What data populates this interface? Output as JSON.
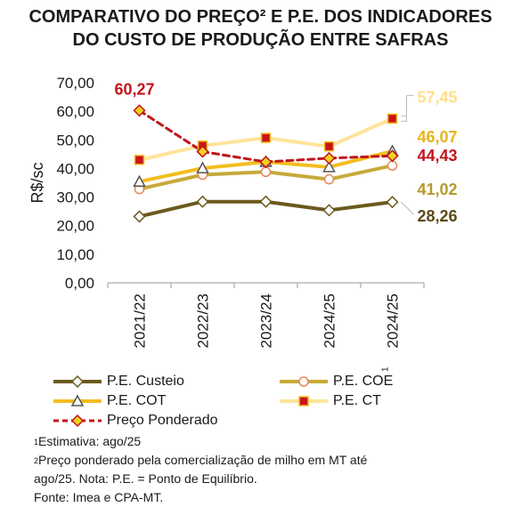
{
  "title_line1": "COMPARATIVO DO PREÇO² E P.E. DOS INDICADORES",
  "title_line2": "DO CUSTO DE PRODUÇÃO ENTRE SAFRAS",
  "chart_data": {
    "type": "line",
    "ylabel": "R$/sc",
    "ylim": [
      0,
      70
    ],
    "yticks": [
      "0,00",
      "10,00",
      "20,00",
      "30,00",
      "40,00",
      "50,00",
      "60,00",
      "70,00"
    ],
    "categories": [
      "2021/22",
      "2022/23",
      "2023/24",
      "2024/25",
      "2024/25"
    ],
    "last_category_superscript": "1",
    "series": [
      {
        "name": "P.E. Custeio",
        "values": [
          23.2,
          28.4,
          28.4,
          25.4,
          28.26
        ],
        "color": "#6B5A1E",
        "marker": "diamond",
        "marker_fill": "#ffffff"
      },
      {
        "name": "P.E. COE",
        "values": [
          32.8,
          37.8,
          38.8,
          36.2,
          41.02
        ],
        "color": "#C7A93A",
        "marker": "circle",
        "marker_fill": "#ffffff",
        "marker_stroke": "#E8875A"
      },
      {
        "name": "P.E. COT",
        "values": [
          35.4,
          40.1,
          42.3,
          40.5,
          46.07
        ],
        "color": "#F2BE1E",
        "marker": "triangle",
        "marker_fill": "#ffffff",
        "marker_stroke": "#555555"
      },
      {
        "name": "P.E. CT",
        "values": [
          43.0,
          48.0,
          50.7,
          47.7,
          57.45
        ],
        "color": "#FFE49A",
        "marker": "square",
        "marker_fill": "#C9151B",
        "marker_stroke": "#F2BE1E"
      },
      {
        "name": "Preço Ponderado",
        "values": [
          60.27,
          45.9,
          42.3,
          43.6,
          44.43
        ],
        "color": "#C0151B",
        "dashed": true,
        "marker": "diamond",
        "marker_fill": "#F2D21E",
        "marker_stroke": "#C0151B"
      }
    ],
    "annotations": [
      {
        "text": "60,27",
        "series": "Preço Ponderado",
        "color": "#C0151B"
      },
      {
        "text": "57,45",
        "series": "P.E. CT",
        "color": "#FFE08A"
      },
      {
        "text": "46,07",
        "series": "P.E. COT",
        "color": "#E6B418"
      },
      {
        "text": "44,43",
        "series": "Preço Ponderado",
        "color": "#C0151B"
      },
      {
        "text": "41,02",
        "series": "P.E. COE",
        "color": "#B59A2E"
      },
      {
        "text": "28,26",
        "series": "P.E. Custeio",
        "color": "#5A4A16"
      }
    ],
    "grid": false,
    "legend_position": "bottom"
  },
  "notes": {
    "n1_sup": "1",
    "n1": "Estimativa: ago/25",
    "n2_sup": "2",
    "n2a": "Preço ponderado pela comercialização de milho em MT até",
    "n2b": "ago/25. Nota: P.E. = Ponto de Equilíbrio.",
    "source": "Fonte: Imea e CPA-MT."
  }
}
